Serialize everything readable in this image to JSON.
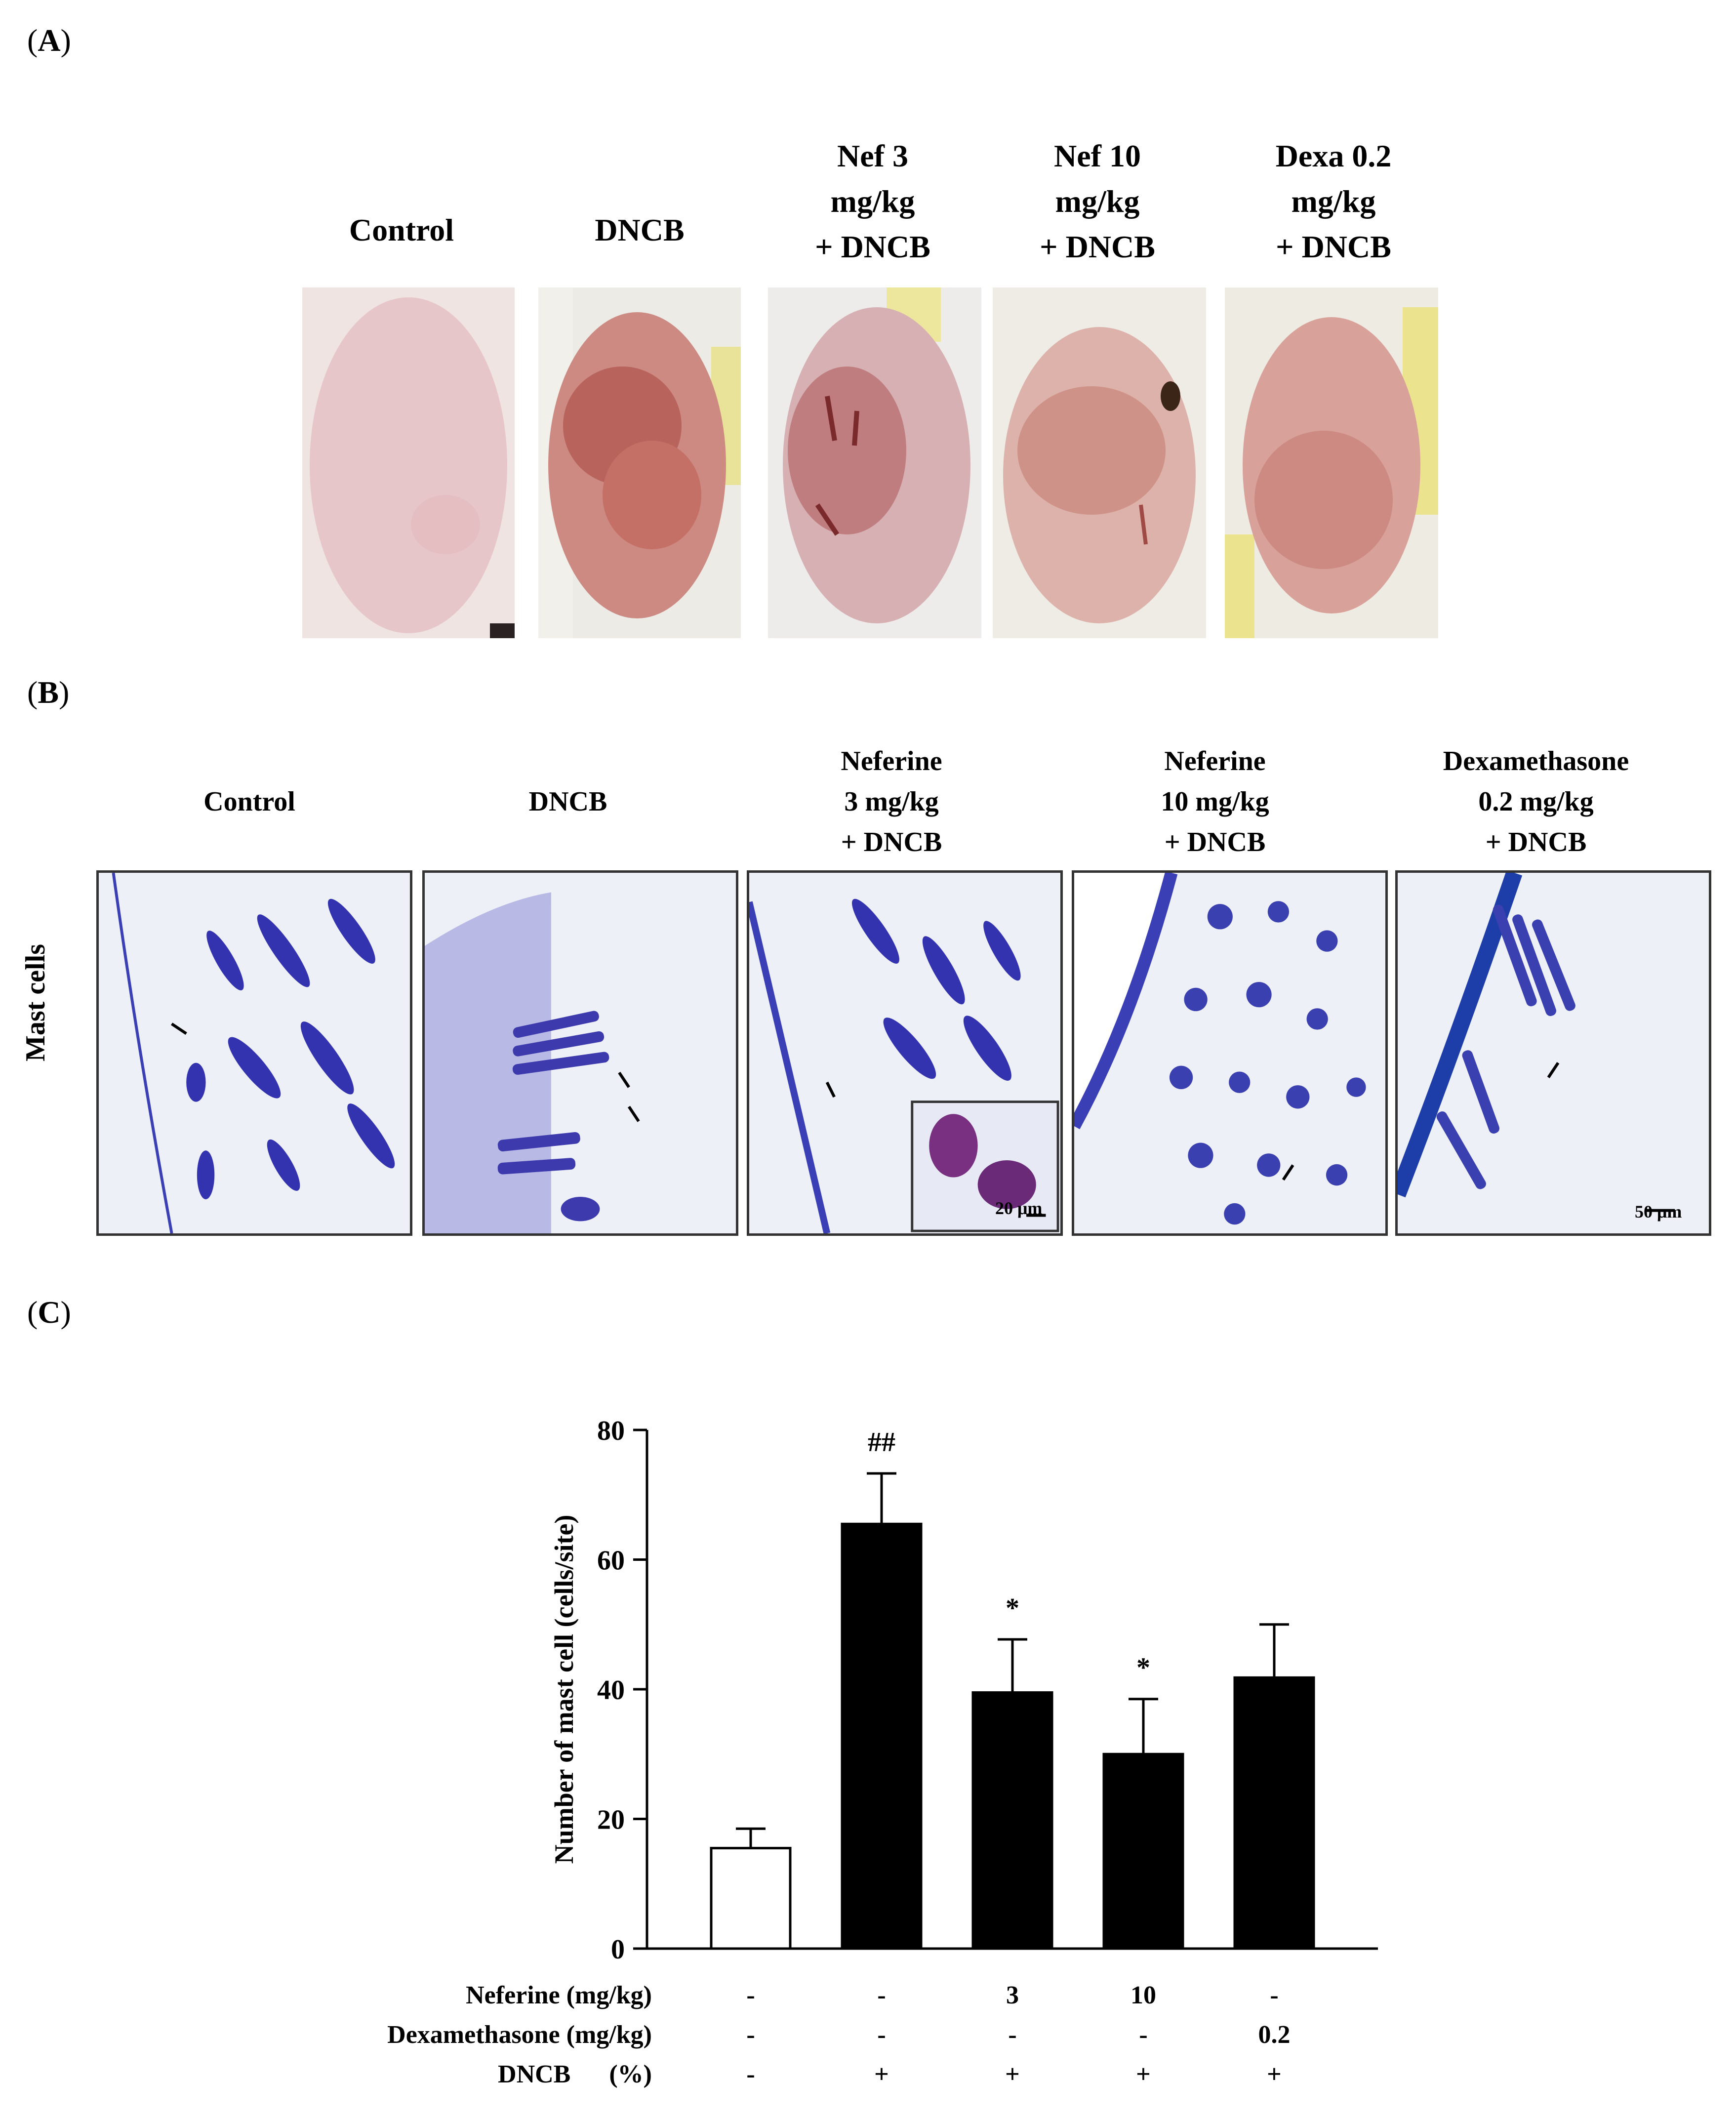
{
  "panels": {
    "a_label": "A",
    "b_label": "B",
    "c_label": "C"
  },
  "panel_a": {
    "titles": [
      [
        "Control"
      ],
      [
        "DNCB"
      ],
      [
        "Nef 3",
        "mg/kg",
        "+ DNCB"
      ],
      [
        "Nef 10",
        "mg/kg",
        "+ DNCB"
      ],
      [
        "Dexa 0.2",
        "mg/kg",
        "+ DNCB"
      ]
    ],
    "photo_colors": [
      "#e9c9cb",
      "#c97e77",
      "#d2a7a8",
      "#d7aaa3",
      "#d49c95"
    ]
  },
  "panel_b": {
    "row_label": "Mast cells",
    "titles": [
      [
        "Control"
      ],
      [
        "DNCB"
      ],
      [
        "Neferine",
        "3 mg/kg",
        "+ DNCB"
      ],
      [
        "Neferine",
        "10 mg/kg",
        "+ DNCB"
      ],
      [
        "Dexamethasone",
        "0.2 mg/kg",
        "+ DNCB"
      ]
    ],
    "inset_scale": "20 μm",
    "main_scale": "50 μm",
    "stain_color": "#3a3fb5"
  },
  "chart_data": {
    "type": "bar",
    "ylabel": "Number of mast cell (cells/site)",
    "ylim": [
      0,
      80
    ],
    "yticks": [
      0,
      20,
      40,
      60,
      80
    ],
    "bars": [
      {
        "value": 15.5,
        "error": 3.0,
        "fill": "white",
        "annotation": ""
      },
      {
        "value": 65.5,
        "error": 7.8,
        "fill": "black",
        "annotation": "##"
      },
      {
        "value": 39.5,
        "error": 8.2,
        "fill": "black",
        "annotation": "*"
      },
      {
        "value": 30.0,
        "error": 8.5,
        "fill": "black",
        "annotation": "*"
      },
      {
        "value": 41.8,
        "error": 8.2,
        "fill": "black",
        "annotation": ""
      }
    ],
    "conditions": [
      {
        "label": "Neferine (mg/kg)",
        "values": [
          "-",
          "-",
          "3",
          "10",
          "-"
        ]
      },
      {
        "label": "Dexamethasone (mg/kg)",
        "values": [
          "-",
          "-",
          "-",
          "-",
          "0.2"
        ]
      },
      {
        "label": "DNCB      (%)",
        "values": [
          "-",
          "+",
          "+",
          "+",
          "+"
        ]
      }
    ]
  }
}
